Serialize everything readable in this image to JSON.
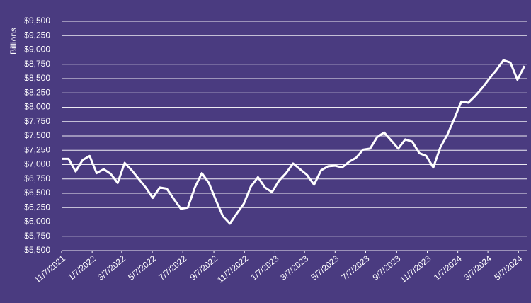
{
  "chart_data": {
    "type": "line",
    "y_label": "Billions",
    "x": [
      "11/7/2021",
      "11/21/2021",
      "12/5/2021",
      "12/19/2021",
      "1/2/2022",
      "1/16/2022",
      "1/30/2022",
      "2/13/2022",
      "2/27/2022",
      "3/13/2022",
      "3/27/2022",
      "4/10/2022",
      "4/24/2022",
      "5/8/2022",
      "5/22/2022",
      "6/5/2022",
      "6/19/2022",
      "7/3/2022",
      "7/17/2022",
      "7/31/2022",
      "8/14/2022",
      "8/28/2022",
      "9/11/2022",
      "9/25/2022",
      "10/9/2022",
      "10/23/2022",
      "11/6/2022",
      "11/20/2022",
      "12/4/2022",
      "12/18/2022",
      "1/1/2023",
      "1/15/2023",
      "1/29/2023",
      "2/12/2023",
      "2/26/2023",
      "3/12/2023",
      "3/26/2023",
      "4/9/2023",
      "4/23/2023",
      "5/7/2023",
      "5/21/2023",
      "6/4/2023",
      "6/18/2023",
      "7/2/2023",
      "7/16/2023",
      "7/30/2023",
      "8/13/2023",
      "8/27/2023",
      "9/10/2023",
      "9/24/2023",
      "10/8/2023",
      "10/22/2023",
      "11/5/2023",
      "11/19/2023",
      "12/3/2023",
      "12/17/2023",
      "12/31/2023",
      "1/14/2024",
      "1/28/2024",
      "2/11/2024",
      "2/25/2024",
      "3/10/2024",
      "3/24/2024",
      "4/7/2024",
      "4/21/2024",
      "5/5/2024",
      "5/19/2024"
    ],
    "series": [
      {
        "color": "#ffffff",
        "values": [
          7100,
          7100,
          6880,
          7080,
          7150,
          6850,
          6920,
          6840,
          6680,
          7030,
          6900,
          6750,
          6600,
          6420,
          6600,
          6580,
          6400,
          6230,
          6250,
          6600,
          6850,
          6680,
          6380,
          6100,
          5970,
          6150,
          6320,
          6620,
          6780,
          6600,
          6520,
          6720,
          6850,
          7020,
          6920,
          6820,
          6650,
          6900,
          6970,
          6980,
          6950,
          7050,
          7120,
          7260,
          7280,
          7480,
          7560,
          7420,
          7280,
          7440,
          7400,
          7200,
          7150,
          6950,
          7300,
          7520,
          7800,
          8100,
          8080,
          8200,
          8340,
          8500,
          8650,
          8820,
          8780,
          8480,
          8720
        ]
      }
    ],
    "xlim": [
      "11/7/2021",
      "5/25/2024"
    ],
    "xticks": [
      "11/7/2021",
      "1/7/2022",
      "3/7/2022",
      "5/7/2022",
      "7/7/2022",
      "9/7/2022",
      "11/7/2022",
      "1/7/2023",
      "3/7/2023",
      "5/7/2023",
      "7/7/2023",
      "9/7/2023",
      "11/7/2023",
      "1/7/2024",
      "3/7/2024",
      "5/7/2024"
    ],
    "ylim": [
      5500,
      9500
    ],
    "yticks": [
      {
        "value": 5500,
        "label": "$5,500"
      },
      {
        "value": 5750,
        "label": "$5,750"
      },
      {
        "value": 6000,
        "label": "$6,000"
      },
      {
        "value": 6250,
        "label": "$6,250"
      },
      {
        "value": 6500,
        "label": "$6,500"
      },
      {
        "value": 6750,
        "label": "$6,750"
      },
      {
        "value": 7000,
        "label": "$7,000"
      },
      {
        "value": 7250,
        "label": "$7,250"
      },
      {
        "value": 7500,
        "label": "$7,500"
      },
      {
        "value": 7750,
        "label": "$7,750"
      },
      {
        "value": 8000,
        "label": "$8,000"
      },
      {
        "value": 8250,
        "label": "$8,250"
      },
      {
        "value": 8500,
        "label": "$8,500"
      },
      {
        "value": 8750,
        "label": "$8,750"
      },
      {
        "value": 9000,
        "label": "$9,000"
      },
      {
        "value": 9250,
        "label": "$9,250"
      },
      {
        "value": 9500,
        "label": "$9,500"
      }
    ],
    "grid": true
  }
}
